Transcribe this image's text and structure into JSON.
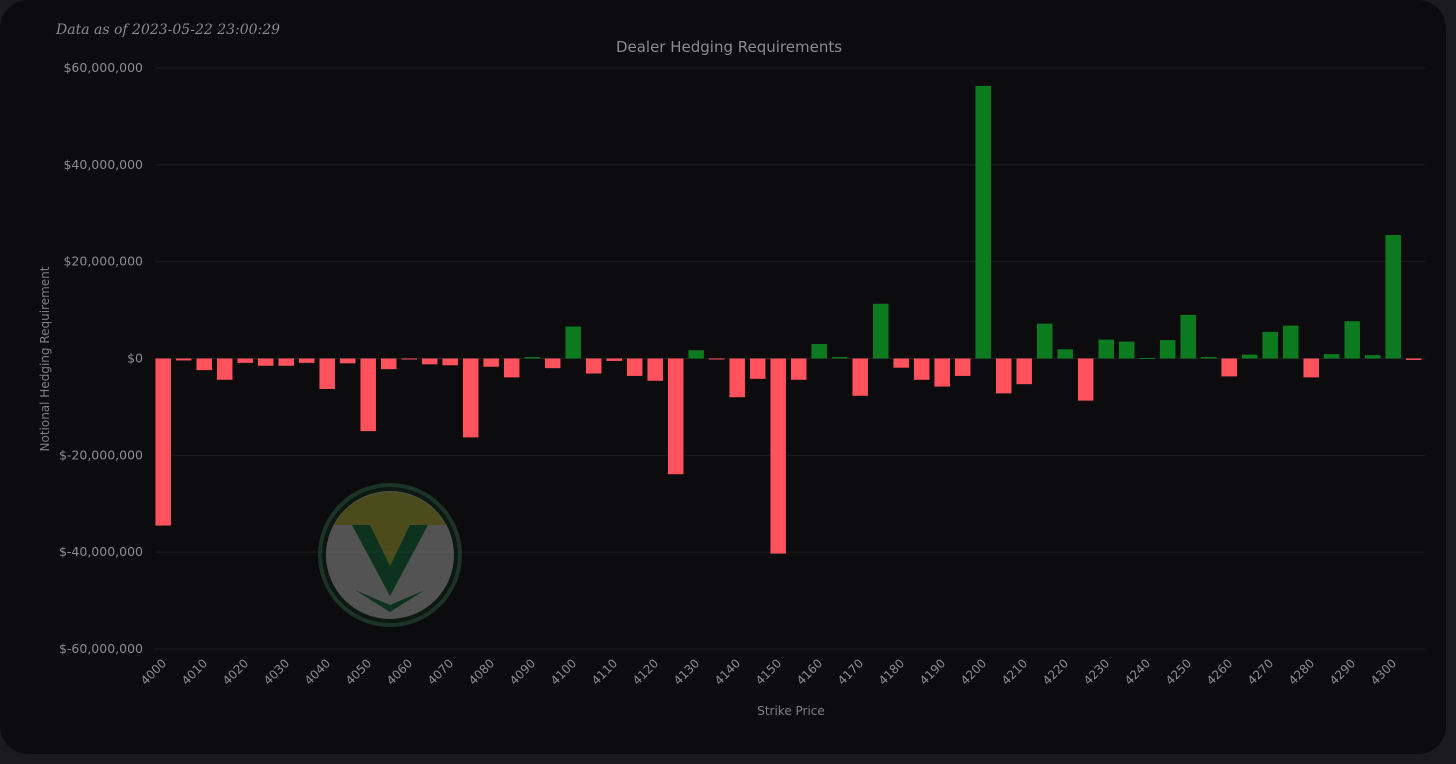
{
  "stamp": "Data as of 2023-05-22 23:00:29",
  "colors": {
    "positive": "#0c7a1f",
    "negative": "#ff525c",
    "background": "#0c0c0e",
    "text": "#8c8c90"
  },
  "logo": {
    "icon": "vw-style-v-logo-icon"
  },
  "chart_data": {
    "type": "bar",
    "title": "Dealer Hedging Requirements",
    "xlabel": "Strike Price",
    "ylabel": "Notional Hedging Requirement",
    "ylim": [
      -60000000,
      60000000
    ],
    "yticks": [
      60000000,
      40000000,
      20000000,
      0,
      -20000000,
      -40000000,
      -60000000
    ],
    "ytick_labels": [
      "$60,000,000",
      "$40,000,000",
      "$20,000,000",
      "$0",
      "$-20,000,000",
      "$-40,000,000",
      "$-60,000,000"
    ],
    "xticks": [
      4000,
      4010,
      4020,
      4030,
      4040,
      4050,
      4060,
      4070,
      4080,
      4090,
      4100,
      4110,
      4120,
      4130,
      4140,
      4150,
      4160,
      4170,
      4180,
      4190,
      4200,
      4210,
      4220,
      4230,
      4240,
      4250,
      4260,
      4270,
      4280,
      4290,
      4300
    ],
    "grid": false,
    "series": [
      {
        "x": [
          4000,
          4005,
          4010,
          4015,
          4020,
          4025,
          4030,
          4035,
          4040,
          4045,
          4050,
          4055,
          4060,
          4065,
          4070,
          4075,
          4080,
          4085,
          4090,
          4095,
          4100,
          4105,
          4110,
          4115,
          4120,
          4125,
          4130,
          4135,
          4140,
          4145,
          4150,
          4155,
          4160,
          4165,
          4170,
          4175,
          4180,
          4185,
          4190,
          4195,
          4200,
          4205,
          4210,
          4215,
          4220,
          4225,
          4230,
          4235,
          4240,
          4245,
          4250,
          4255,
          4260,
          4265,
          4270,
          4275,
          4280,
          4285,
          4290,
          4295,
          4300,
          4305
        ],
        "values": [
          -34500000,
          -400000,
          -2400000,
          -4400000,
          -900000,
          -1500000,
          -1500000,
          -900000,
          -6300000,
          -1000000,
          -15000000,
          -2200000,
          -200000,
          -1200000,
          -1400000,
          -16300000,
          -1700000,
          -3900000,
          300000,
          -2000000,
          6600000,
          -3100000,
          -500000,
          -3600000,
          -4600000,
          -23900000,
          1700000,
          -100000,
          -8000000,
          -4200000,
          -40300000,
          -4400000,
          3000000,
          300000,
          -7700000,
          11300000,
          -1900000,
          -4400000,
          -5800000,
          -3600000,
          56300000,
          -7200000,
          -5300000,
          7200000,
          1900000,
          -8700000,
          3900000,
          3500000,
          100000,
          3800000,
          9000000,
          300000,
          -3700000,
          800000,
          5500000,
          6800000,
          -3900000,
          900000,
          7700000,
          700000,
          25500000,
          -300000
        ]
      }
    ]
  }
}
